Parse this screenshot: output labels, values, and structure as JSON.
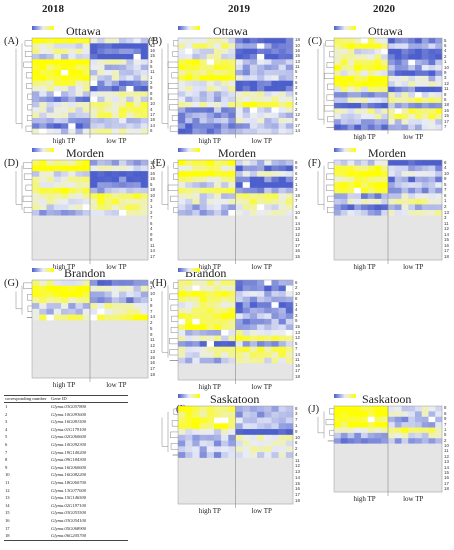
{
  "years": [
    "2018",
    "2019",
    "2020"
  ],
  "colors": {
    "low": "#4d5fcc",
    "mid": "#e9ecf7",
    "high": "#ffff00",
    "missing": "#e5e5e5"
  },
  "panels": [
    {
      "id": "A",
      "label": "(A)",
      "site": "Ottawa",
      "group_left": "high TP",
      "group_right": "low TP",
      "rows": [
        "13",
        "12",
        "16",
        "15",
        "3",
        "5",
        "11",
        "1",
        "2",
        "9",
        "8",
        "6",
        "10",
        "4",
        "17",
        "18",
        "14",
        "6"
      ]
    },
    {
      "id": "B",
      "label": "(B)",
      "site": "Ottawa",
      "group_left": "high TP",
      "group_right": "low TP",
      "rows": [
        "18",
        "10",
        "16",
        "15",
        "13",
        "11",
        "5",
        "7",
        "6",
        "3",
        "9",
        "1",
        "4",
        "2",
        "12",
        "8",
        "17",
        "14"
      ]
    },
    {
      "id": "C",
      "label": "(C)",
      "site": "Ottawa",
      "group_left": "high TP",
      "group_right": "low TP",
      "rows": [
        "5",
        "6",
        "4",
        "2",
        "1",
        "10",
        "9",
        "3",
        "12",
        "11",
        "8",
        "5",
        "18",
        "16",
        "15",
        "17",
        "7"
      ]
    },
    {
      "id": "D",
      "label": "(D)",
      "site": "Morden",
      "group_left": "high TP",
      "group_right": "low TP",
      "rows": [
        "13",
        "12",
        "16",
        "15",
        "5",
        "18",
        "10",
        "3",
        "1",
        "2",
        "7",
        "6",
        "4",
        "9",
        "8",
        "11",
        "14",
        "17"
      ]
    },
    {
      "id": "E",
      "label": "(E)",
      "site": "Morden",
      "group_left": "high TP",
      "group_right": "low TP",
      "rows": [
        "8",
        "9",
        "6",
        "2",
        "1",
        "3",
        "18",
        "7",
        "4",
        "10",
        "5",
        "14",
        "13",
        "12",
        "11",
        "17",
        "16",
        "15"
      ]
    },
    {
      "id": "F",
      "label": "(F)",
      "site": "Morden",
      "group_left": "high TP",
      "group_right": "low TP",
      "rows": [
        "8",
        "4",
        "10",
        "9",
        "5",
        "7",
        "6",
        "1",
        "2",
        "13",
        "3",
        "11",
        "12",
        "14",
        "15",
        "16",
        "17",
        "18"
      ]
    },
    {
      "id": "G",
      "label": "(G)",
      "site": "Brandon",
      "group_left": "high TP",
      "group_right": "low TP",
      "rows": [
        "6",
        "3",
        "10",
        "1",
        "8",
        "7",
        "14",
        "2",
        "5",
        "9",
        "11",
        "12",
        "13",
        "15",
        "16",
        "17",
        "18"
      ]
    },
    {
      "id": "H",
      "label": "(H)",
      "site": "Brandon",
      "group_left": "high TP",
      "group_right": "low TP",
      "rows": [
        "6",
        "2",
        "10",
        "8",
        "1",
        "4",
        "3",
        "9",
        "15",
        "13",
        "12",
        "5",
        "7",
        "14",
        "11",
        "16",
        "17",
        "18"
      ]
    },
    {
      "id": "I",
      "label": "(I)",
      "site": "Saskatoon",
      "group_left": "high TP",
      "group_right": "low TP",
      "rows": [
        "8",
        "3",
        "7",
        "1",
        "9",
        "10",
        "6",
        "2",
        "4",
        "11",
        "12",
        "13",
        "14",
        "15",
        "16",
        "17",
        "18"
      ]
    },
    {
      "id": "J",
      "label": "(J)",
      "site": "Saskatoon",
      "group_left": "high TP",
      "group_right": "low TP",
      "rows": [
        "8",
        "6",
        "9",
        "7",
        "1",
        "5",
        "2",
        "10",
        "11",
        "12",
        "13",
        "14",
        "15",
        "16",
        "17",
        "18"
      ]
    }
  ],
  "gene_table": {
    "col1": "corresponding number",
    "col2": "Gene ID",
    "rows": [
      {
        "n": "1",
        "id": "Glyma.03G057800"
      },
      {
        "n": "2",
        "id": "Glyma.10G093600"
      },
      {
        "n": "3",
        "id": "Glyma.16G081500"
      },
      {
        "n": "4",
        "id": "Glyma.01G179100"
      },
      {
        "n": "5",
        "id": "Glyma.02G060600"
      },
      {
        "n": "6",
        "id": "Glyma.10G092300"
      },
      {
        "n": "7",
        "id": "Glyma.19G140200"
      },
      {
        "n": "8",
        "id": "Glyma.09G184300"
      },
      {
        "n": "9",
        "id": "Glyma.16G060600"
      },
      {
        "n": "10",
        "id": "Glyma.16G082200"
      },
      {
        "n": "11",
        "id": "Glyma.18G060700"
      },
      {
        "n": "12",
        "id": "Glyma.13G077600"
      },
      {
        "n": "13",
        "id": "Glyma.15G146500"
      },
      {
        "n": "14",
        "id": "Glyma.02G197100"
      },
      {
        "n": "15",
        "id": "Glyma.03G053500"
      },
      {
        "n": "16",
        "id": "Glyma.03G054100"
      },
      {
        "n": "17",
        "id": "Glyma.05G068900"
      },
      {
        "n": "18",
        "id": "Glyma.06G205700"
      }
    ]
  }
}
